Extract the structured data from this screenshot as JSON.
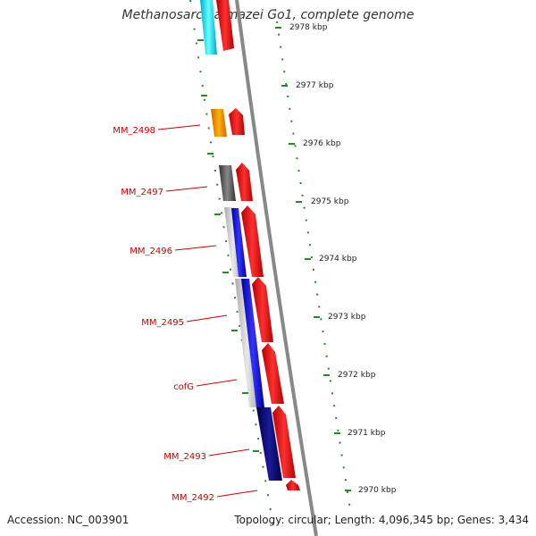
{
  "header": {
    "title": "Methanosarcina mazei Go1, complete genome"
  },
  "footer": {
    "accession": "Accession: NC_003901",
    "summary": "Topology: circular; Length: 4,096,345 bp; Genes: 3,434"
  },
  "scale": {
    "labels": [
      "2978 kbp",
      "2977 kbp",
      "2976 kbp",
      "2975 kbp",
      "2974 kbp",
      "2973 kbp",
      "2972 kbp",
      "2971 kbp",
      "2970 kbp"
    ]
  },
  "genes": [
    {
      "name": "MM_2498"
    },
    {
      "name": "MM_2497"
    },
    {
      "name": "MM_2496"
    },
    {
      "name": "MM_2495"
    },
    {
      "name": "cofG"
    },
    {
      "name": "MM_2493"
    },
    {
      "name": "MM_2492"
    }
  ],
  "colors": {
    "cds": "#ff0000",
    "backbone": "#888888",
    "ticks": "#228B22",
    "label": "#cc0000",
    "cog_cyan": "#00e5ee",
    "cog_orange": "#ff9900",
    "cog_gray": "#666666",
    "cog_blue": "#0000ff",
    "cog_navy": "#000080"
  }
}
